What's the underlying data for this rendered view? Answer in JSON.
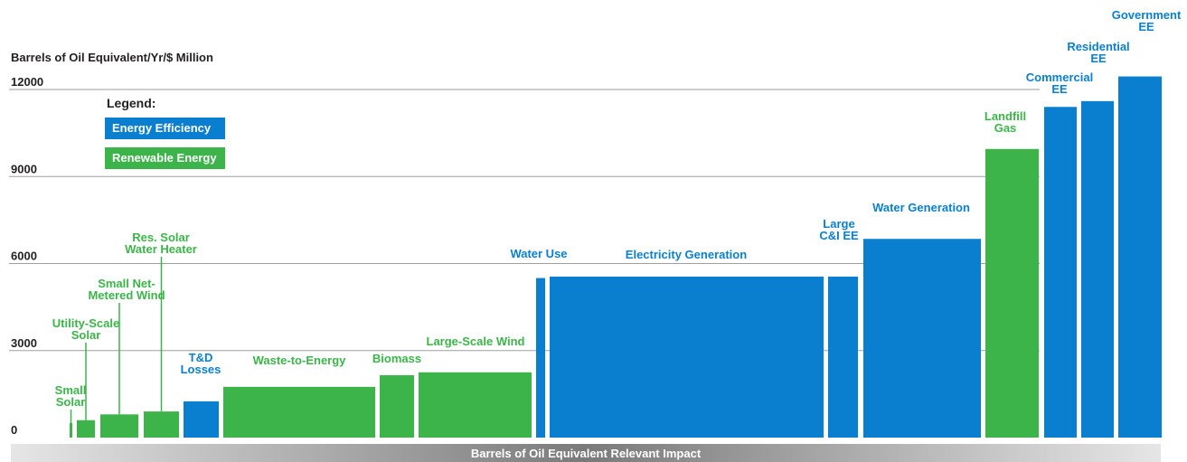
{
  "chart_data": {
    "type": "bar",
    "title": "",
    "ylabel": "Barrels of Oil Equivalent/Yr/$ Million",
    "xlabel": "Barrels of Oil Equivalent Relevant Impact",
    "ylim": [
      0,
      12000
    ],
    "yticks": [
      "0",
      "3000",
      "6000",
      "9000",
      "12000"
    ],
    "legend": {
      "title": "Legend:",
      "items": [
        {
          "label": "Energy Efficiency",
          "color": "#0a7fcf"
        },
        {
          "label": "Renewable Energy",
          "color": "#3cb44a"
        }
      ]
    },
    "grid": true,
    "bars": [
      {
        "label": "Small\nSolar",
        "value": 500,
        "category": "Renewable Energy"
      },
      {
        "label": "Utility-Scale\nSolar",
        "value": 600,
        "category": "Renewable Energy"
      },
      {
        "label": "Small Net-\nMetered Wind",
        "value": 800,
        "category": "Renewable Energy"
      },
      {
        "label": "Res. Solar\nWater Heater",
        "value": 900,
        "category": "Renewable Energy"
      },
      {
        "label": "T&D\nLosses",
        "value": 1250,
        "category": "Energy Efficiency"
      },
      {
        "label": "Waste-to-Energy",
        "value": 1750,
        "category": "Renewable Energy"
      },
      {
        "label": "Biomass",
        "value": 2150,
        "category": "Renewable Energy"
      },
      {
        "label": "Large-Scale Wind",
        "value": 2250,
        "category": "Renewable Energy"
      },
      {
        "label": "Water Use",
        "value": 5500,
        "category": "Energy Efficiency"
      },
      {
        "label": "Electricity Generation",
        "value": 5550,
        "category": "Energy Efficiency"
      },
      {
        "label": "Large\nC&I EE",
        "value": 5550,
        "category": "Energy Efficiency"
      },
      {
        "label": "Water Generation",
        "value": 6850,
        "category": "Energy Efficiency"
      },
      {
        "label": "Landfill\nGas",
        "value": 9950,
        "category": "Renewable Energy"
      },
      {
        "label": "Commercial\nEE",
        "value": 11400,
        "category": "Energy Efficiency"
      },
      {
        "label": "Residential\nEE",
        "value": 11600,
        "category": "Energy Efficiency"
      },
      {
        "label": "Government\nEE",
        "value": 12450,
        "category": "Energy Efficiency"
      }
    ]
  }
}
